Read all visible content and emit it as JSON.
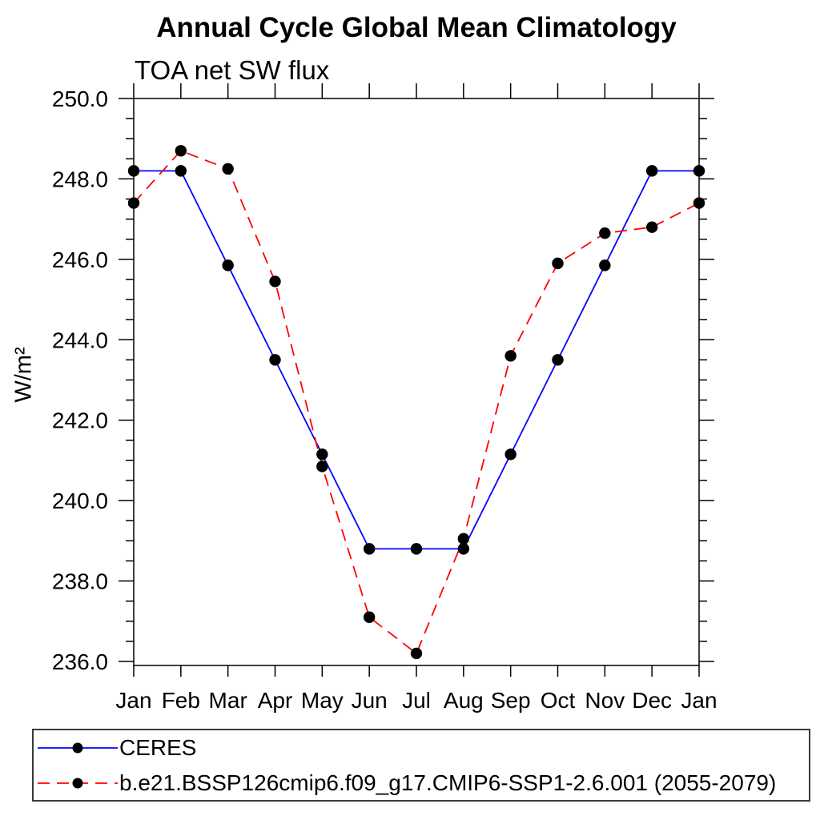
{
  "chart_data": {
    "type": "line",
    "title": "Annual Cycle Global Mean Climatology",
    "subtitle": "TOA net SW flux",
    "ylabel": "W/m²",
    "xlabel": "",
    "categories": [
      "Jan",
      "Feb",
      "Mar",
      "Apr",
      "May",
      "Jun",
      "Jul",
      "Aug",
      "Sep",
      "Oct",
      "Nov",
      "Dec",
      "Jan"
    ],
    "ylim": [
      235.9,
      250.0
    ],
    "yticks": [
      250,
      248,
      246,
      244,
      242,
      240,
      238,
      236
    ],
    "ytick_labels": [
      "250.0",
      "248.0",
      "246.0",
      "244.0",
      "242.0",
      "240.0",
      "238.0",
      "236.0"
    ],
    "ytick_minor_step": 0.5,
    "grid": false,
    "legend_position": "bottom",
    "axis_color": "#000000",
    "series": [
      {
        "name": "CERES",
        "color": "#0000ff",
        "line_style": "solid",
        "marker": "filled-circle",
        "marker_color": "#000000",
        "values": [
          248.2,
          248.2,
          245.85,
          243.5,
          241.15,
          238.8,
          238.8,
          238.8,
          241.15,
          243.5,
          245.85,
          248.2,
          248.2
        ]
      },
      {
        "name": "b.e21.BSSP126cmip6.f09_g17.CMIP6-SSP1-2.6.001 (2055-2079)",
        "color": "#ff0000",
        "line_style": "dashed",
        "marker": "filled-circle",
        "marker_color": "#000000",
        "values": [
          247.4,
          248.7,
          248.25,
          245.45,
          240.85,
          237.1,
          236.2,
          239.05,
          243.6,
          245.9,
          246.65,
          246.8,
          247.4
        ]
      }
    ]
  }
}
